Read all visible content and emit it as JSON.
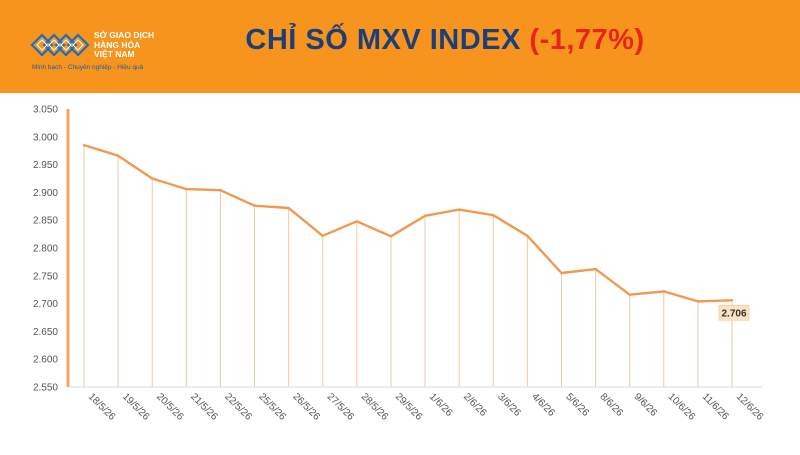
{
  "header": {
    "title_main": "CHỈ SỐ MXV INDEX ",
    "title_change": "(-1,77%)",
    "background": "#f7941d"
  },
  "logo": {
    "name": "SỞ GIAO DỊCH\nHÀNG HÓA\nVIỆT NAM",
    "slogan": "Minh bạch - Chuyên nghiệp - Hiệu quả"
  },
  "chart_data": {
    "type": "line",
    "categories": [
      "18/5/26",
      "19/5/26",
      "20/5/26",
      "21/5/26",
      "22/5/26",
      "25/5/26",
      "26/5/26",
      "27/5/26",
      "28/5/26",
      "29/5/26",
      "1/6/26",
      "2/6/26",
      "3/6/26",
      "4/6/26",
      "5/6/26",
      "8/6/26",
      "9/6/26",
      "10/6/26",
      "11/6/26",
      "12/6/26"
    ],
    "series": [
      {
        "values": [
          2985,
          2966,
          2925,
          2906,
          2904,
          2876,
          2872,
          2822,
          2848,
          2821,
          2858,
          2869,
          2859,
          2822,
          2755,
          2762,
          2716,
          2722,
          2704,
          2706
        ],
        "color": "#ee9a52"
      }
    ],
    "last_value_label": "2.706",
    "ylim": [
      2550,
      3050
    ],
    "yticks": [
      "2.550",
      "2.600",
      "2.650",
      "2.700",
      "2.750",
      "2.800",
      "2.850",
      "2.900",
      "2.950",
      "3.000",
      "3.050"
    ],
    "axis_color": "#f4a460",
    "drop_line_color": "#f6c9a0",
    "grid": false
  }
}
